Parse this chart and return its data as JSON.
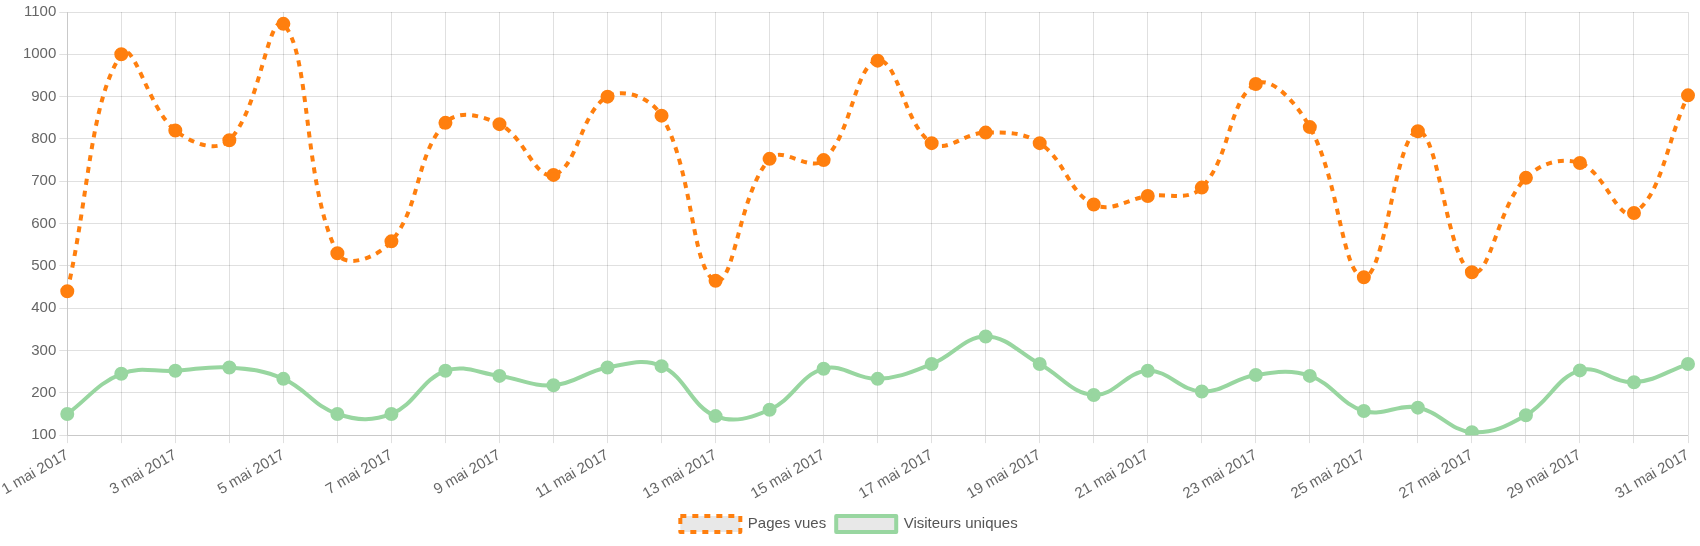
{
  "chart_data": {
    "type": "line",
    "categories": [
      "1 mai 2017",
      null,
      "3 mai 2017",
      null,
      "5 mai 2017",
      null,
      "7 mai 2017",
      null,
      "9 mai 2017",
      null,
      "11 mai 2017",
      null,
      "13 mai 2017",
      null,
      "15 mai 2017",
      null,
      "17 mai 2017",
      null,
      "19 mai 2017",
      null,
      "21 mai 2017",
      null,
      "23 mai 2017",
      null,
      "25 mai 2017",
      null,
      "27 mai 2017",
      null,
      "29 mai 2017",
      null,
      "31 mai 2017"
    ],
    "series": [
      {
        "name": "Pages vues",
        "color": "#ff7f0e",
        "line_style": "dashed",
        "values": [
          440,
          1000,
          820,
          797,
          1072,
          530,
          558,
          838,
          835,
          715,
          900,
          855,
          465,
          753,
          750,
          985,
          790,
          815,
          790,
          645,
          665,
          685,
          930,
          828,
          473,
          818,
          485,
          708,
          743,
          625,
          903
        ]
      },
      {
        "name": "Visiteurs uniques",
        "color": "#98d6a0",
        "line_style": "solid",
        "values": [
          150,
          245,
          252,
          260,
          233,
          150,
          150,
          252,
          240,
          218,
          260,
          263,
          145,
          160,
          257,
          233,
          268,
          333,
          268,
          195,
          252,
          203,
          242,
          240,
          157,
          165,
          107,
          147,
          253,
          225,
          268
        ]
      }
    ],
    "ylim": [
      100,
      1100
    ],
    "yticks": [
      100,
      200,
      300,
      400,
      500,
      600,
      700,
      800,
      900,
      1000,
      1100
    ],
    "grid": true,
    "legend": "bottom",
    "marker": "circle"
  }
}
